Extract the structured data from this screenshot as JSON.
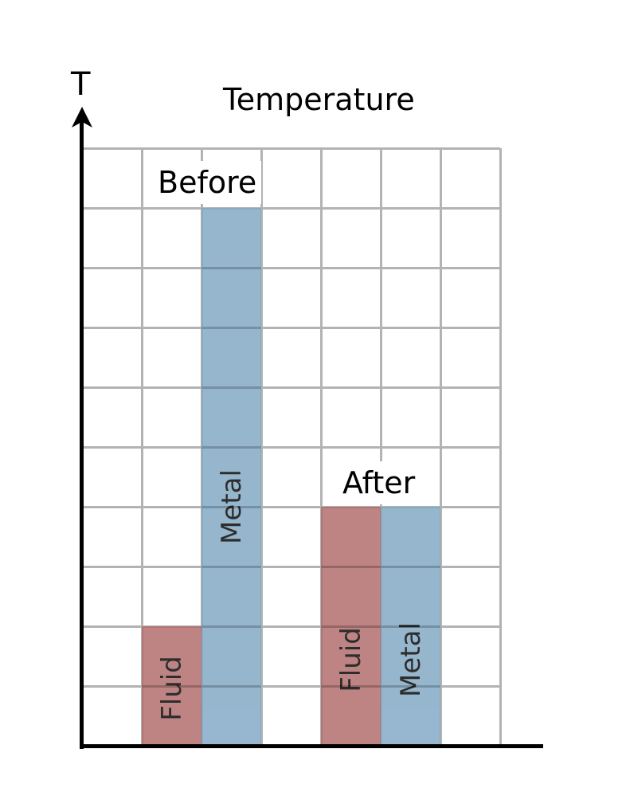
{
  "chart_data": {
    "type": "bar",
    "title": "Temperature",
    "xlabel": "",
    "ylabel": "T",
    "ylim": [
      0,
      10
    ],
    "grid": true,
    "categories": [
      "Before",
      "After"
    ],
    "series": [
      {
        "name": "Fluid",
        "color": "#b06868",
        "values": [
          2,
          4
        ]
      },
      {
        "name": "Metal",
        "color": "#7fa7c4",
        "values": [
          9,
          4
        ]
      }
    ],
    "bar_labels": {
      "before_fluid": "Fluid",
      "before_metal": "Metal",
      "after_fluid": "Fluid",
      "after_metal": "Metal"
    },
    "annotations": [
      "Before",
      "After"
    ]
  },
  "labels": {
    "title": "Temperature",
    "y_axis": "T",
    "before": "Before",
    "after": "After"
  },
  "colors": {
    "fluid": "#b06868",
    "metal": "#7fa7c4",
    "grid": "#b3b3b3",
    "axis": "#000000"
  }
}
